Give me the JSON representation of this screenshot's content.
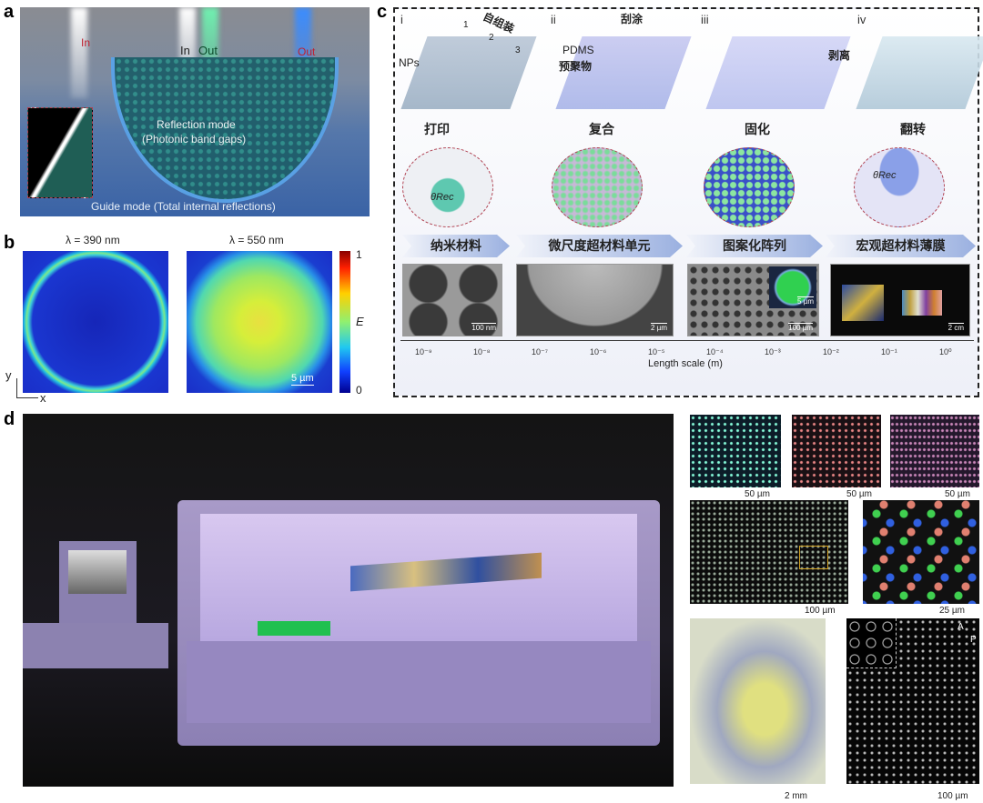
{
  "panels": {
    "a": "a",
    "b": "b",
    "c": "c",
    "d": "d"
  },
  "panel_a": {
    "in_left": "In",
    "in_center": "In",
    "out_center": "Out",
    "out_right": "Out",
    "reflection_mode": "Reflection mode",
    "reflection_sub": "(Photonic band gaps)",
    "guide_mode": "Guide mode (Total internal reflections)"
  },
  "panel_b": {
    "title_left": "λ = 390 nm",
    "title_right": "λ = 550 nm",
    "scale_bar": "5 µm",
    "colorbar_max": "1",
    "colorbar_min": "0",
    "colorbar_label": "E",
    "axis_y": "y",
    "axis_x": "x"
  },
  "panel_c": {
    "stages": [
      {
        "numeral": "i",
        "step": "打印"
      },
      {
        "numeral": "ii",
        "step": "复合"
      },
      {
        "numeral": "iii",
        "step": "固化"
      },
      {
        "numeral": "iv",
        "step": "翻转"
      }
    ],
    "annotations": {
      "self_assembly": "自组装",
      "n1": "1",
      "n2": "2",
      "n3": "3",
      "nps": "NPs",
      "scrape": "刮涂",
      "pdms": "PDMS",
      "prepolymer": "预聚物",
      "peel": "剥离",
      "theta": "θRec"
    },
    "banners": [
      "纳米材料",
      "微尺度超材料单元",
      "图案化阵列",
      "宏观超材料薄膜"
    ],
    "scale_bars": [
      "100 nm",
      "2 µm",
      "100 µm",
      "5 µm",
      "2 cm"
    ],
    "axis": {
      "label": "Length scale (m)",
      "ticks": [
        "10⁻⁹",
        "10⁻⁸",
        "10⁻⁷",
        "10⁻⁶",
        "10⁻⁵",
        "10⁻⁴",
        "10⁻³",
        "10⁻²",
        "10⁻¹",
        "10⁰"
      ]
    }
  },
  "panel_d": {
    "scale_bars": [
      "50 µm",
      "50 µm",
      "50 µm",
      "100 µm",
      "25 µm",
      "2 mm",
      "100 µm"
    ],
    "polarizer_a": "A",
    "polarizer_p": "P"
  }
}
